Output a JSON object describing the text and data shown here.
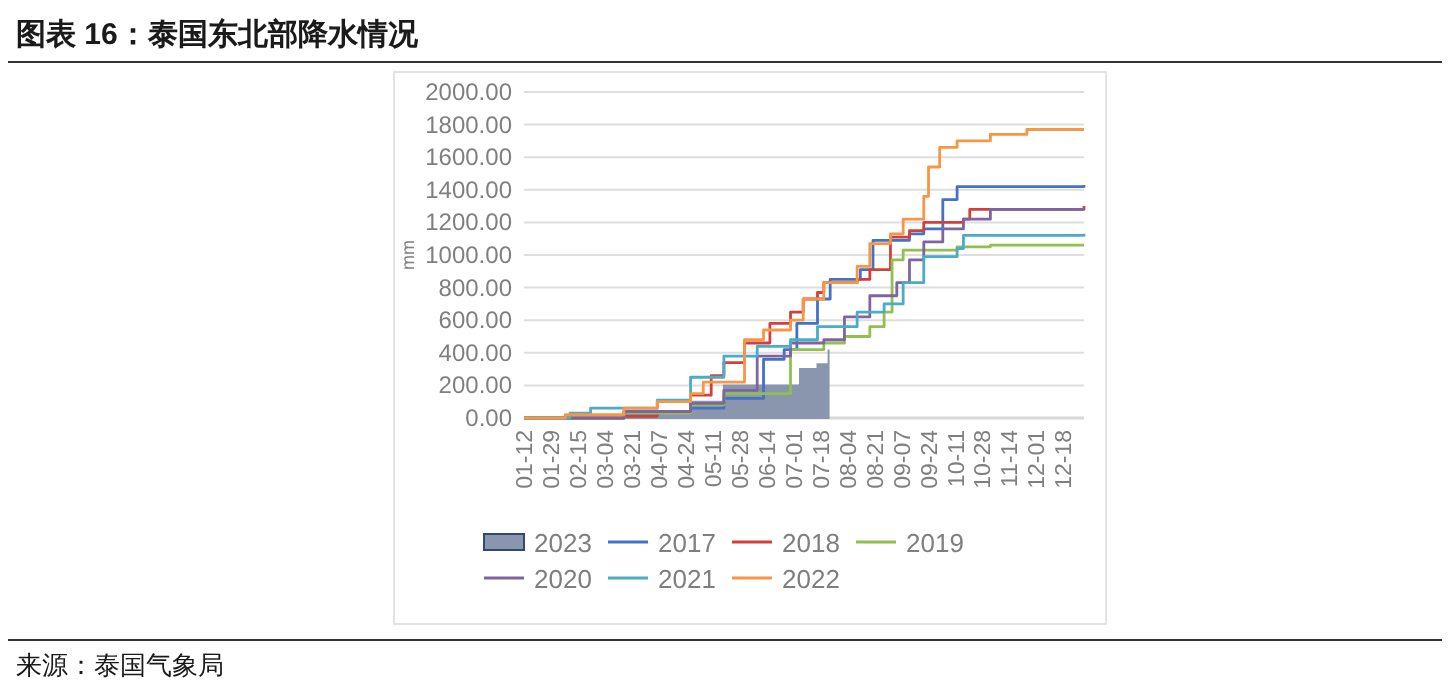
{
  "chart_data": {
    "type": "step",
    "title": "图表 16：泰国东北部降水情况",
    "ylabel": "mm",
    "annotations": [
      "来源：泰国气象局"
    ],
    "xlim": [
      "--01-12",
      "--12-31"
    ],
    "xticks": [
      {
        "value": "--01-12",
        "label": "01-12"
      },
      {
        "value": "--01-29",
        "label": "01-29"
      },
      {
        "value": "--02-15",
        "label": "02-15"
      },
      {
        "value": "--03-04",
        "label": "03-04"
      },
      {
        "value": "--03-21",
        "label": "03-21"
      },
      {
        "value": "--04-07",
        "label": "04-07"
      },
      {
        "value": "--04-24",
        "label": "04-24"
      },
      {
        "value": "--05-11",
        "label": "05-11"
      },
      {
        "value": "--05-28",
        "label": "05-28"
      },
      {
        "value": "--06-14",
        "label": "06-14"
      },
      {
        "value": "--07-01",
        "label": "07-01"
      },
      {
        "value": "--07-18",
        "label": "07-18"
      },
      {
        "value": "--08-04",
        "label": "08-04"
      },
      {
        "value": "--08-21",
        "label": "08-21"
      },
      {
        "value": "--09-07",
        "label": "09-07"
      },
      {
        "value": "--09-24",
        "label": "09-24"
      },
      {
        "value": "--10-11",
        "label": "10-11"
      },
      {
        "value": "--10-28",
        "label": "10-28"
      },
      {
        "value": "--11-14",
        "label": "11-14"
      },
      {
        "value": "--12-01",
        "label": "12-01"
      },
      {
        "value": "--12-18",
        "label": "12-18"
      }
    ],
    "ylim": [
      0,
      2000
    ],
    "yticks": [
      {
        "value": 0,
        "label": "0.00"
      },
      {
        "value": 200,
        "label": "200.00"
      },
      {
        "value": 400,
        "label": "400.00"
      },
      {
        "value": 600,
        "label": "600.00"
      },
      {
        "value": 800,
        "label": "800.00"
      },
      {
        "value": 1000,
        "label": "1000.00"
      },
      {
        "value": 1200,
        "label": "1200.00"
      },
      {
        "value": 1400,
        "label": "1400.00"
      },
      {
        "value": 1600,
        "label": "1600.00"
      },
      {
        "value": 1800,
        "label": "1800.00"
      },
      {
        "value": 2000,
        "label": "2000.00"
      }
    ],
    "grid": "y",
    "legend": "bottom",
    "series": [
      {
        "name": "2023",
        "type": "area",
        "color": "#8a96ad",
        "x": [
          "--01-12",
          "--03-16",
          "--04-27",
          "--05-18",
          "--06-23",
          "--07-05",
          "--07-16",
          "--07-23"
        ],
        "values": [
          0,
          20,
          100,
          200,
          200,
          300,
          330,
          420
        ]
      },
      {
        "name": "2017",
        "color": "#4472c4",
        "x": [
          "--01-12",
          "--03-16",
          "--04-06",
          "--04-27",
          "--05-18",
          "--06-12",
          "--06-25",
          "--07-03",
          "--07-16",
          "--07-24",
          "--08-12",
          "--08-20",
          "--09-12",
          "--09-21",
          "--10-03",
          "--10-12",
          "--12-31"
        ],
        "values": [
          0,
          20,
          40,
          60,
          120,
          360,
          420,
          580,
          730,
          850,
          910,
          1090,
          1130,
          1160,
          1340,
          1420,
          1430
        ]
      },
      {
        "name": "2018",
        "color": "#d0413e",
        "x": [
          "--01-12",
          "--03-16",
          "--04-06",
          "--04-27",
          "--05-10",
          "--05-18",
          "--05-31",
          "--06-16",
          "--06-29",
          "--07-07",
          "--07-16",
          "--07-20",
          "--08-10",
          "--08-18",
          "--08-31",
          "--09-12",
          "--09-21",
          "--10-16",
          "--10-20",
          "--12-31"
        ],
        "values": [
          0,
          10,
          40,
          140,
          260,
          340,
          460,
          580,
          650,
          730,
          770,
          830,
          850,
          910,
          1110,
          1150,
          1200,
          1220,
          1280,
          1300
        ]
      },
      {
        "name": "2019",
        "color": "#92c050",
        "x": [
          "--01-12",
          "--03-16",
          "--04-27",
          "--05-18",
          "--06-29",
          "--07-20",
          "--08-02",
          "--08-18",
          "--08-27",
          "--09-01",
          "--09-08",
          "--10-12",
          "--11-02",
          "--12-31"
        ],
        "values": [
          0,
          30,
          80,
          150,
          420,
          460,
          500,
          560,
          650,
          970,
          1030,
          1050,
          1060,
          1060
        ]
      },
      {
        "name": "2020",
        "color": "#8064a2",
        "x": [
          "--01-12",
          "--03-16",
          "--04-27",
          "--05-18",
          "--06-08",
          "--06-29",
          "--07-20",
          "--08-02",
          "--08-18",
          "--09-04",
          "--09-12",
          "--09-21",
          "--10-03",
          "--10-16",
          "--11-02",
          "--12-31"
        ],
        "values": [
          0,
          40,
          90,
          170,
          380,
          460,
          480,
          620,
          750,
          830,
          970,
          1080,
          1160,
          1220,
          1280,
          1280
        ]
      },
      {
        "name": "2021",
        "color": "#4bacc6",
        "x": [
          "--01-12",
          "--02-10",
          "--02-23",
          "--04-06",
          "--04-27",
          "--05-18",
          "--06-08",
          "--06-29",
          "--07-16",
          "--08-10",
          "--08-27",
          "--09-08",
          "--09-21",
          "--10-12",
          "--10-16",
          "--12-31"
        ],
        "values": [
          0,
          30,
          60,
          110,
          250,
          380,
          440,
          480,
          560,
          650,
          700,
          830,
          990,
          1040,
          1120,
          1130
        ]
      },
      {
        "name": "2022",
        "color": "#f79646",
        "x": [
          "--01-12",
          "--02-07",
          "--03-16",
          "--04-06",
          "--04-27",
          "--05-05",
          "--05-31",
          "--06-12",
          "--06-29",
          "--07-07",
          "--07-20",
          "--08-10",
          "--08-18",
          "--08-31",
          "--09-08",
          "--09-21",
          "--09-24",
          "--10-01",
          "--10-12",
          "--11-02",
          "--11-25",
          "--12-31"
        ],
        "values": [
          0,
          20,
          60,
          100,
          150,
          220,
          480,
          540,
          600,
          730,
          830,
          930,
          1070,
          1130,
          1220,
          1360,
          1540,
          1660,
          1700,
          1740,
          1770,
          1770
        ]
      }
    ]
  }
}
